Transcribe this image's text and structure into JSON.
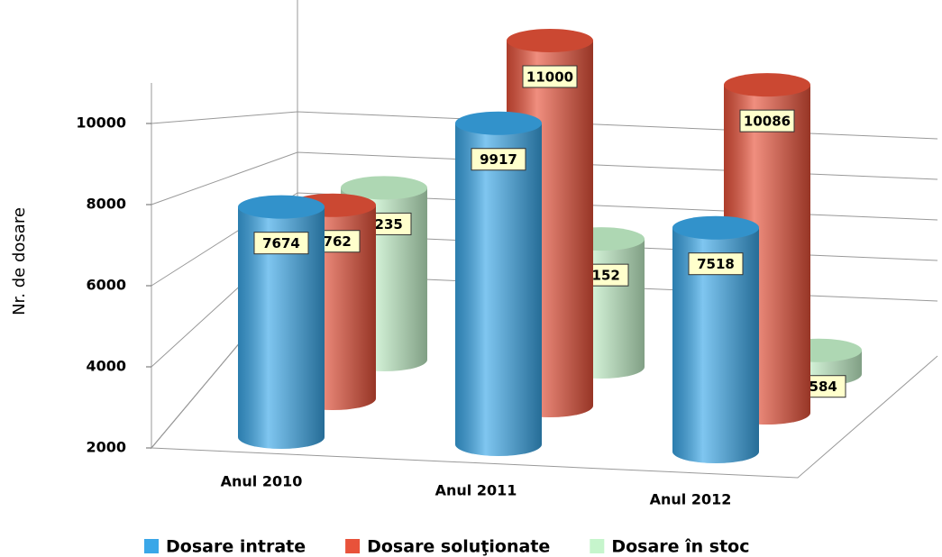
{
  "chart_data": {
    "type": "bar3d",
    "y_label": "Nr. de dosare",
    "categories": [
      "Anul 2010",
      "Anul 2011",
      "Anul 2012"
    ],
    "series": [
      {
        "name": "Dosare intrate",
        "color": "#3aa7e8",
        "values": [
          7674,
          9917,
          7518
        ]
      },
      {
        "name": "Dosare soluţionate",
        "color": "#e8523a",
        "values": [
          6762,
          11000,
          10086
        ]
      },
      {
        "name": "Dosare în stoc",
        "color": "#c6f5cc",
        "values": [
          6235,
          5152,
          2584
        ]
      }
    ],
    "ylim": [
      2000,
      11000
    ],
    "yticks": [
      2000,
      4000,
      6000,
      8000,
      10000
    ],
    "grid": true,
    "legend": "bottom"
  }
}
